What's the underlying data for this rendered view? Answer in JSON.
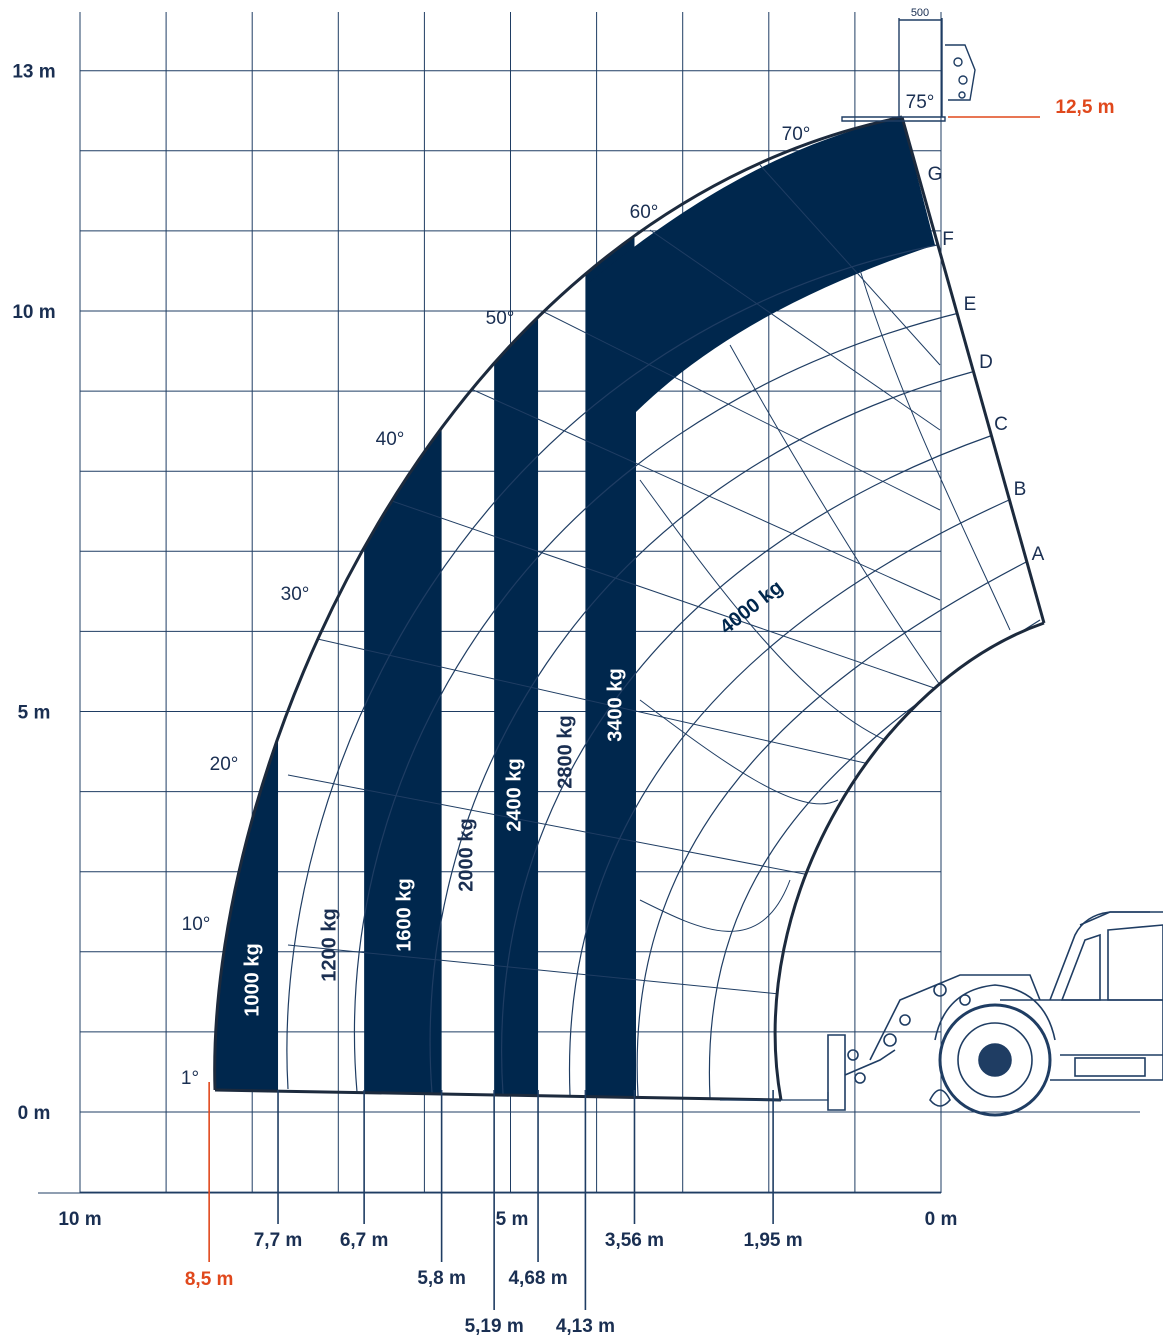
{
  "colors": {
    "navy": "#00274d",
    "grid": "#1f3d63",
    "text": "#1a2f52",
    "accent": "#e0481c",
    "white": "#ffffff"
  },
  "chart_data": {
    "type": "load chart",
    "x_axis": {
      "unit": "m",
      "range": [
        10,
        0
      ],
      "ticks": [
        {
          "value": 10,
          "label": "10 m"
        },
        {
          "value": 5,
          "label": "5 m"
        },
        {
          "value": 0,
          "label": "0 m"
        }
      ]
    },
    "y_axis": {
      "unit": "m",
      "range": [
        0,
        13
      ],
      "ticks": [
        {
          "value": 13,
          "label": "13 m"
        },
        {
          "value": 10,
          "label": "10 m"
        },
        {
          "value": 5,
          "label": "5 m"
        },
        {
          "value": 0,
          "label": "0 m"
        }
      ]
    },
    "grid": true,
    "max_height": {
      "value": 12.5,
      "label": "12,5 m"
    },
    "max_reach": {
      "value": 8.5,
      "label": "8,5 m"
    },
    "fork_width_label": "500",
    "load_zones": [
      {
        "label": "1000 kg",
        "from_m": 8.5,
        "to_m": 7.7,
        "filled": true
      },
      {
        "label": "1200 kg",
        "from_m": 7.7,
        "to_m": 6.7,
        "filled": false
      },
      {
        "label": "1600 kg",
        "from_m": 6.7,
        "to_m": 5.8,
        "filled": true
      },
      {
        "label": "2000 kg",
        "from_m": 5.8,
        "to_m": 5.19,
        "filled": false
      },
      {
        "label": "2400 kg",
        "from_m": 5.19,
        "to_m": 4.68,
        "filled": true
      },
      {
        "label": "2800 kg",
        "from_m": 4.68,
        "to_m": 4.13,
        "filled": false
      },
      {
        "label": "3400 kg",
        "from_m": 4.13,
        "to_m": 3.56,
        "filled": true
      },
      {
        "label": "4000 kg",
        "from_m": 3.56,
        "to_m": 0,
        "filled": false
      }
    ],
    "reach_markers": [
      {
        "value": 7.7,
        "label": "7,7 m"
      },
      {
        "value": 6.7,
        "label": "6,7 m"
      },
      {
        "value": 5.8,
        "label": "5,8 m"
      },
      {
        "value": 5.19,
        "label": "5,19 m"
      },
      {
        "value": 4.68,
        "label": "4,68 m"
      },
      {
        "value": 4.13,
        "label": "4,13 m"
      },
      {
        "value": 3.56,
        "label": "3,56 m"
      },
      {
        "value": 1.95,
        "label": "1,95 m"
      }
    ],
    "boom_angles": [
      "1°",
      "10°",
      "20°",
      "30°",
      "40°",
      "50°",
      "60°",
      "70°",
      "75°"
    ],
    "boom_extensions": [
      "A",
      "B",
      "C",
      "D",
      "E",
      "F",
      "G"
    ]
  }
}
